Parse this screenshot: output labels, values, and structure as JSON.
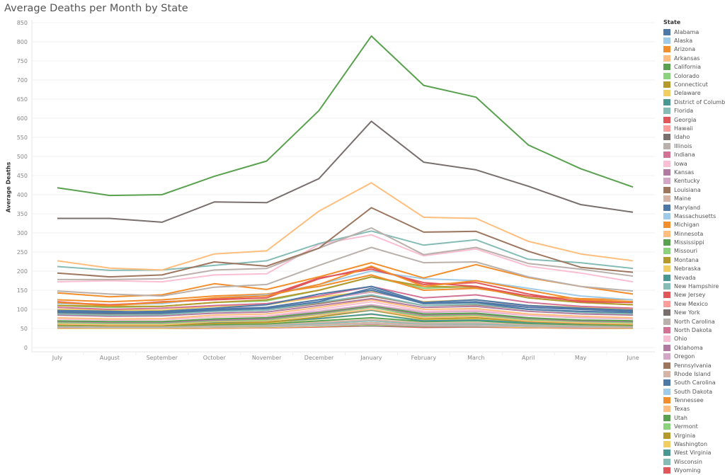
{
  "chart_data": {
    "type": "line",
    "title": "Average Deaths per Month by State",
    "xlabel": "",
    "ylabel": "Average Deaths",
    "ylim": [
      0,
      850
    ],
    "yticks": [
      0,
      50,
      100,
      150,
      200,
      250,
      300,
      350,
      400,
      450,
      500,
      550,
      600,
      650,
      700,
      750,
      800,
      850
    ],
    "grid": true,
    "legend_title": "State",
    "legend_position": "right",
    "categories": [
      "July",
      "August",
      "September",
      "October",
      "November",
      "December",
      "January",
      "February",
      "March",
      "April",
      "May",
      "June"
    ],
    "palette": [
      "#4e79a7",
      "#a0cbe8",
      "#f28e2b",
      "#ffbe7d",
      "#59a14f",
      "#8cd17d",
      "#b6992d",
      "#f1ce63",
      "#499894",
      "#86bcb6",
      "#e15759",
      "#ff9d9a",
      "#79706e",
      "#bab0ac",
      "#d37295",
      "#fabfd2",
      "#b07aa1",
      "#d4a6c8",
      "#9d7660",
      "#d7b5a6"
    ],
    "series": [
      {
        "name": "Alabama",
        "values": [
          97,
          95,
          92,
          100,
          105,
          125,
          150,
          115,
          118,
          100,
          95,
          92
        ]
      },
      {
        "name": "Alaska",
        "values": [
          55,
          55,
          55,
          57,
          58,
          60,
          65,
          60,
          60,
          58,
          56,
          55
        ]
      },
      {
        "name": "Arizona",
        "values": [
          118,
          110,
          118,
          130,
          135,
          165,
          213,
          160,
          175,
          150,
          125,
          120
        ]
      },
      {
        "name": "Arkansas",
        "values": [
          62,
          60,
          60,
          68,
          70,
          85,
          100,
          78,
          82,
          70,
          65,
          62
        ]
      },
      {
        "name": "California",
        "values": [
          418,
          398,
          400,
          448,
          488,
          620,
          815,
          686,
          655,
          530,
          468,
          420
        ]
      },
      {
        "name": "Colorado",
        "values": [
          65,
          63,
          63,
          70,
          72,
          88,
          105,
          82,
          85,
          73,
          68,
          65
        ]
      },
      {
        "name": "Connecticut",
        "values": [
          60,
          58,
          58,
          63,
          66,
          80,
          98,
          75,
          78,
          68,
          63,
          60
        ]
      },
      {
        "name": "Delaware",
        "values": [
          50,
          50,
          50,
          52,
          53,
          56,
          60,
          56,
          56,
          53,
          52,
          50
        ]
      },
      {
        "name": "District of Columbia",
        "values": [
          52,
          51,
          51,
          53,
          54,
          56,
          58,
          55,
          55,
          54,
          52,
          51
        ]
      },
      {
        "name": "Florida",
        "values": [
          212,
          202,
          203,
          215,
          227,
          272,
          305,
          268,
          282,
          231,
          222,
          207
        ]
      },
      {
        "name": "Georgia",
        "values": [
          120,
          110,
          120,
          125,
          130,
          180,
          210,
          165,
          170,
          140,
          120,
          118
        ]
      },
      {
        "name": "Hawaii",
        "values": [
          55,
          54,
          54,
          56,
          57,
          60,
          64,
          60,
          60,
          57,
          56,
          55
        ]
      },
      {
        "name": "Idaho",
        "values": [
          52,
          52,
          52,
          54,
          55,
          58,
          62,
          58,
          58,
          55,
          54,
          52
        ]
      },
      {
        "name": "Illinois",
        "values": [
          178,
          178,
          180,
          203,
          207,
          260,
          313,
          243,
          262,
          220,
          205,
          187
        ]
      },
      {
        "name": "Indiana",
        "values": [
          105,
          100,
          103,
          110,
          115,
          135,
          160,
          130,
          138,
          118,
          108,
          103
        ]
      },
      {
        "name": "Iowa",
        "values": [
          75,
          72,
          73,
          80,
          83,
          100,
          120,
          95,
          98,
          85,
          80,
          76
        ]
      },
      {
        "name": "Kansas",
        "values": [
          68,
          66,
          66,
          72,
          75,
          90,
          108,
          85,
          88,
          76,
          70,
          68
        ]
      },
      {
        "name": "Kentucky",
        "values": [
          95,
          92,
          95,
          102,
          105,
          125,
          145,
          120,
          125,
          108,
          100,
          95
        ]
      },
      {
        "name": "Louisiana",
        "values": [
          90,
          88,
          88,
          95,
          98,
          115,
          135,
          110,
          112,
          100,
          93,
          90
        ]
      },
      {
        "name": "Maine",
        "values": [
          56,
          55,
          55,
          58,
          60,
          66,
          73,
          64,
          65,
          60,
          58,
          56
        ]
      },
      {
        "name": "Maryland",
        "values": [
          95,
          93,
          95,
          103,
          112,
          140,
          160,
          118,
          125,
          110,
          103,
          98
        ]
      },
      {
        "name": "Massachusetts",
        "values": [
          115,
          112,
          115,
          130,
          138,
          165,
          200,
          180,
          175,
          155,
          135,
          125
        ]
      },
      {
        "name": "Michigan",
        "values": [
          143,
          133,
          138,
          167,
          152,
          185,
          222,
          182,
          217,
          183,
          160,
          140
        ]
      },
      {
        "name": "Minnesota",
        "values": [
          78,
          75,
          76,
          85,
          88,
          105,
          125,
          100,
          102,
          88,
          82,
          78
        ]
      },
      {
        "name": "Mississippi",
        "values": [
          70,
          68,
          68,
          75,
          78,
          92,
          110,
          88,
          90,
          78,
          72,
          70
        ]
      },
      {
        "name": "Missouri",
        "values": [
          110,
          105,
          108,
          118,
          122,
          150,
          185,
          155,
          160,
          130,
          118,
          112
        ]
      },
      {
        "name": "Montana",
        "values": [
          54,
          53,
          53,
          55,
          56,
          60,
          65,
          59,
          60,
          56,
          55,
          54
        ]
      },
      {
        "name": "Nebraska",
        "values": [
          60,
          58,
          58,
          63,
          65,
          75,
          88,
          72,
          74,
          65,
          62,
          60
        ]
      },
      {
        "name": "Nevada",
        "values": [
          68,
          66,
          66,
          72,
          74,
          85,
          98,
          82,
          84,
          75,
          70,
          68
        ]
      },
      {
        "name": "New Hampshire",
        "values": [
          55,
          54,
          54,
          57,
          58,
          63,
          70,
          62,
          62,
          58,
          56,
          55
        ]
      },
      {
        "name": "New Jersey",
        "values": [
          118,
          112,
          118,
          128,
          135,
          182,
          205,
          170,
          160,
          135,
          122,
          120
        ]
      },
      {
        "name": "New Mexico",
        "values": [
          62,
          60,
          60,
          65,
          67,
          76,
          87,
          72,
          74,
          66,
          63,
          62
        ]
      },
      {
        "name": "New York",
        "values": [
          338,
          338,
          328,
          381,
          379,
          442,
          592,
          485,
          465,
          422,
          374,
          354
        ]
      },
      {
        "name": "North Carolina",
        "values": [
          148,
          140,
          135,
          158,
          165,
          215,
          262,
          222,
          224,
          185,
          160,
          148
        ]
      },
      {
        "name": "North Dakota",
        "values": [
          52,
          52,
          52,
          54,
          55,
          58,
          62,
          57,
          57,
          55,
          53,
          52
        ]
      },
      {
        "name": "Ohio",
        "values": [
          172,
          175,
          172,
          190,
          193,
          270,
          295,
          240,
          258,
          213,
          195,
          172
        ]
      },
      {
        "name": "Oklahoma",
        "values": [
          85,
          82,
          83,
          90,
          93,
          110,
          128,
          105,
          108,
          95,
          88,
          85
        ]
      },
      {
        "name": "Oregon",
        "values": [
          75,
          73,
          73,
          80,
          82,
          95,
          112,
          92,
          95,
          84,
          78,
          75
        ]
      },
      {
        "name": "Pennsylvania",
        "values": [
          195,
          185,
          190,
          224,
          213,
          260,
          366,
          302,
          304,
          252,
          210,
          197
        ]
      },
      {
        "name": "Rhode Island",
        "values": [
          53,
          52,
          52,
          55,
          56,
          60,
          65,
          59,
          60,
          56,
          54,
          53
        ]
      },
      {
        "name": "South Carolina",
        "values": [
          92,
          90,
          90,
          98,
          102,
          120,
          155,
          115,
          120,
          105,
          100,
          95
        ]
      },
      {
        "name": "South Dakota",
        "values": [
          53,
          52,
          52,
          54,
          55,
          58,
          63,
          58,
          58,
          55,
          54,
          53
        ]
      },
      {
        "name": "Tennessee",
        "values": [
          125,
          120,
          125,
          135,
          140,
          160,
          190,
          150,
          155,
          135,
          128,
          125
        ]
      },
      {
        "name": "Texas",
        "values": [
          227,
          208,
          203,
          245,
          253,
          357,
          431,
          341,
          338,
          278,
          245,
          227
        ]
      },
      {
        "name": "Utah",
        "values": [
          58,
          57,
          57,
          60,
          62,
          70,
          78,
          68,
          70,
          63,
          60,
          58
        ]
      },
      {
        "name": "Vermont",
        "values": [
          50,
          50,
          50,
          51,
          52,
          54,
          57,
          54,
          54,
          52,
          51,
          50
        ]
      },
      {
        "name": "Virginia",
        "values": [
          110,
          108,
          108,
          118,
          125,
          150,
          185,
          160,
          158,
          130,
          118,
          112
        ]
      },
      {
        "name": "Washington",
        "values": [
          100,
          98,
          98,
          108,
          112,
          132,
          148,
          120,
          125,
          110,
          105,
          100
        ]
      },
      {
        "name": "West Virginia",
        "values": [
          62,
          60,
          60,
          65,
          67,
          76,
          88,
          70,
          72,
          65,
          62,
          60
        ]
      },
      {
        "name": "Wisconsin",
        "values": [
          88,
          85,
          86,
          95,
          98,
          118,
          138,
          110,
          114,
          100,
          92,
          88
        ]
      },
      {
        "name": "Wyoming",
        "values": [
          50,
          50,
          50,
          51,
          52,
          54,
          57,
          53,
          54,
          52,
          51,
          50
        ]
      }
    ]
  }
}
